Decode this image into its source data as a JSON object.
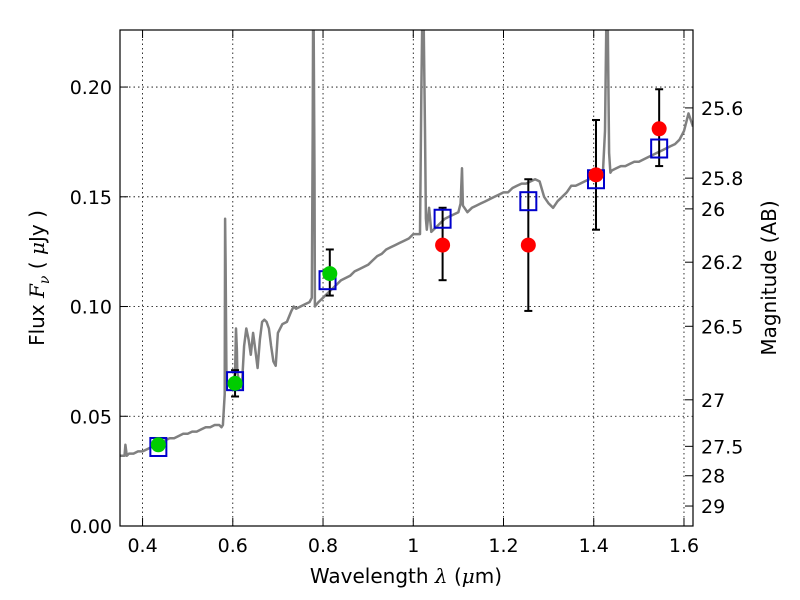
{
  "chart_data": {
    "type": "line",
    "xlabel": "Wavelength",
    "xlabel_symbol": "λ",
    "xlabel_unit_open": " (",
    "xlabel_unit_mu": "μ",
    "xlabel_unit_close": "m)",
    "ylabel": "Flux",
    "ylabel_symbol": "F",
    "ylabel_sub": "ν",
    "ylabel_unit_open": "  ( ",
    "ylabel_unit_mu": "μ",
    "ylabel_unit_close": "Jy )",
    "y2label": "Magnitude (AB)",
    "xlim": [
      0.35,
      1.62
    ],
    "ylim": [
      0.0,
      0.226
    ],
    "grid": true,
    "x_ticks": [
      {
        "value": 0.4,
        "label": "0.4"
      },
      {
        "value": 0.6,
        "label": "0.6"
      },
      {
        "value": 0.8,
        "label": "0.8"
      },
      {
        "value": 1.0,
        "label": "1"
      },
      {
        "value": 1.2,
        "label": "1.2"
      },
      {
        "value": 1.4,
        "label": "1.4"
      },
      {
        "value": 1.6,
        "label": "1.6"
      }
    ],
    "y_ticks": [
      {
        "value": 0.0,
        "label": "0.00"
      },
      {
        "value": 0.05,
        "label": "0.05"
      },
      {
        "value": 0.1,
        "label": "0.10"
      },
      {
        "value": 0.15,
        "label": "0.15"
      },
      {
        "value": 0.2,
        "label": "0.20"
      }
    ],
    "y2_ticks": [
      {
        "flux": 0.1905,
        "label": "25.6"
      },
      {
        "flux": 0.1585,
        "label": "25.8"
      },
      {
        "flux": 0.1445,
        "label": "26"
      },
      {
        "flux": 0.1202,
        "label": "26.2"
      },
      {
        "flux": 0.091,
        "label": "26.5"
      },
      {
        "flux": 0.0575,
        "label": "27"
      },
      {
        "flux": 0.0363,
        "label": "27.5"
      },
      {
        "flux": 0.0229,
        "label": "28"
      },
      {
        "flux": 0.0091,
        "label": "29"
      }
    ],
    "series": [
      {
        "name": "model-spectrum",
        "color": "#808080",
        "points": [
          [
            0.35,
            0.032
          ],
          [
            0.36,
            0.032
          ],
          [
            0.362,
            0.037
          ],
          [
            0.365,
            0.032
          ],
          [
            0.37,
            0.033
          ],
          [
            0.38,
            0.033
          ],
          [
            0.39,
            0.034
          ],
          [
            0.4,
            0.034
          ],
          [
            0.41,
            0.035
          ],
          [
            0.42,
            0.036
          ],
          [
            0.43,
            0.037
          ],
          [
            0.44,
            0.037
          ],
          [
            0.45,
            0.039
          ],
          [
            0.46,
            0.04
          ],
          [
            0.47,
            0.04
          ],
          [
            0.48,
            0.041
          ],
          [
            0.49,
            0.042
          ],
          [
            0.5,
            0.042
          ],
          [
            0.51,
            0.043
          ],
          [
            0.52,
            0.043
          ],
          [
            0.53,
            0.044
          ],
          [
            0.54,
            0.045
          ],
          [
            0.55,
            0.045
          ],
          [
            0.56,
            0.046
          ],
          [
            0.57,
            0.046
          ],
          [
            0.575,
            0.045
          ],
          [
            0.578,
            0.046
          ],
          [
            0.582,
            0.06
          ],
          [
            0.583,
            0.14
          ],
          [
            0.584,
            0.12
          ],
          [
            0.586,
            0.065
          ],
          [
            0.59,
            0.065
          ],
          [
            0.595,
            0.066
          ],
          [
            0.6,
            0.065
          ],
          [
            0.605,
            0.07
          ],
          [
            0.607,
            0.09
          ],
          [
            0.609,
            0.08
          ],
          [
            0.61,
            0.07
          ],
          [
            0.615,
            0.065
          ],
          [
            0.62,
            0.063
          ],
          [
            0.625,
            0.082
          ],
          [
            0.63,
            0.09
          ],
          [
            0.635,
            0.085
          ],
          [
            0.64,
            0.078
          ],
          [
            0.645,
            0.088
          ],
          [
            0.65,
            0.08
          ],
          [
            0.655,
            0.072
          ],
          [
            0.66,
            0.085
          ],
          [
            0.665,
            0.093
          ],
          [
            0.67,
            0.094
          ],
          [
            0.675,
            0.093
          ],
          [
            0.68,
            0.09
          ],
          [
            0.685,
            0.082
          ],
          [
            0.69,
            0.075
          ],
          [
            0.695,
            0.073
          ],
          [
            0.7,
            0.088
          ],
          [
            0.71,
            0.092
          ],
          [
            0.72,
            0.093
          ],
          [
            0.73,
            0.098
          ],
          [
            0.735,
            0.1
          ],
          [
            0.74,
            0.099
          ],
          [
            0.75,
            0.1
          ],
          [
            0.76,
            0.101
          ],
          [
            0.77,
            0.102
          ],
          [
            0.775,
            0.104
          ],
          [
            0.777,
            0.18
          ],
          [
            0.778,
            0.232
          ],
          [
            0.779,
            0.232
          ],
          [
            0.781,
            0.16
          ],
          [
            0.782,
            0.1
          ],
          [
            0.79,
            0.102
          ],
          [
            0.8,
            0.104
          ],
          [
            0.81,
            0.106
          ],
          [
            0.82,
            0.108
          ],
          [
            0.83,
            0.11
          ],
          [
            0.84,
            0.112
          ],
          [
            0.85,
            0.113
          ],
          [
            0.86,
            0.114
          ],
          [
            0.87,
            0.116
          ],
          [
            0.88,
            0.117
          ],
          [
            0.89,
            0.118
          ],
          [
            0.9,
            0.119
          ],
          [
            0.91,
            0.121
          ],
          [
            0.92,
            0.123
          ],
          [
            0.93,
            0.124
          ],
          [
            0.94,
            0.126
          ],
          [
            0.95,
            0.127
          ],
          [
            0.96,
            0.128
          ],
          [
            0.97,
            0.129
          ],
          [
            0.98,
            0.13
          ],
          [
            0.99,
            0.131
          ],
          [
            1.0,
            0.133
          ],
          [
            1.01,
            0.133
          ],
          [
            1.015,
            0.133
          ],
          [
            1.018,
            0.2
          ],
          [
            1.02,
            0.232
          ],
          [
            1.023,
            0.232
          ],
          [
            1.026,
            0.18
          ],
          [
            1.028,
            0.14
          ],
          [
            1.03,
            0.135
          ],
          [
            1.035,
            0.145
          ],
          [
            1.04,
            0.134
          ],
          [
            1.05,
            0.136
          ],
          [
            1.06,
            0.138
          ],
          [
            1.07,
            0.14
          ],
          [
            1.08,
            0.141
          ],
          [
            1.09,
            0.142
          ],
          [
            1.1,
            0.143
          ],
          [
            1.105,
            0.147
          ],
          [
            1.108,
            0.163
          ],
          [
            1.11,
            0.146
          ],
          [
            1.12,
            0.143
          ],
          [
            1.13,
            0.145
          ],
          [
            1.14,
            0.146
          ],
          [
            1.15,
            0.147
          ],
          [
            1.16,
            0.148
          ],
          [
            1.17,
            0.149
          ],
          [
            1.18,
            0.15
          ],
          [
            1.19,
            0.151
          ],
          [
            1.2,
            0.152
          ],
          [
            1.21,
            0.152
          ],
          [
            1.22,
            0.154
          ],
          [
            1.23,
            0.155
          ],
          [
            1.24,
            0.156
          ],
          [
            1.25,
            0.156
          ],
          [
            1.26,
            0.157
          ],
          [
            1.27,
            0.158
          ],
          [
            1.28,
            0.157
          ],
          [
            1.29,
            0.15
          ],
          [
            1.3,
            0.147
          ],
          [
            1.31,
            0.145
          ],
          [
            1.32,
            0.148
          ],
          [
            1.33,
            0.15
          ],
          [
            1.34,
            0.152
          ],
          [
            1.35,
            0.155
          ],
          [
            1.36,
            0.155
          ],
          [
            1.37,
            0.156
          ],
          [
            1.38,
            0.157
          ],
          [
            1.39,
            0.158
          ],
          [
            1.4,
            0.159
          ],
          [
            1.41,
            0.16
          ],
          [
            1.42,
            0.16
          ],
          [
            1.425,
            0.18
          ],
          [
            1.428,
            0.232
          ],
          [
            1.431,
            0.232
          ],
          [
            1.434,
            0.17
          ],
          [
            1.437,
            0.161
          ],
          [
            1.44,
            0.162
          ],
          [
            1.45,
            0.163
          ],
          [
            1.46,
            0.164
          ],
          [
            1.47,
            0.164
          ],
          [
            1.48,
            0.165
          ],
          [
            1.49,
            0.166
          ],
          [
            1.5,
            0.166
          ],
          [
            1.51,
            0.167
          ],
          [
            1.52,
            0.168
          ],
          [
            1.53,
            0.169
          ],
          [
            1.54,
            0.17
          ],
          [
            1.55,
            0.171
          ],
          [
            1.56,
            0.172
          ],
          [
            1.57,
            0.173
          ],
          [
            1.58,
            0.174
          ],
          [
            1.59,
            0.176
          ],
          [
            1.6,
            0.18
          ],
          [
            1.61,
            0.188
          ],
          [
            1.62,
            0.182
          ]
        ]
      },
      {
        "name": "model-photometry",
        "color": "#0000cc",
        "marker": "square",
        "points": [
          [
            0.435,
            0.036
          ],
          [
            0.605,
            0.066
          ],
          [
            0.81,
            0.112
          ],
          [
            1.065,
            0.14
          ],
          [
            1.255,
            0.148
          ],
          [
            1.405,
            0.158
          ],
          [
            1.545,
            0.172
          ]
        ]
      },
      {
        "name": "observed-optical",
        "color": "#00cc00",
        "marker": "circle",
        "points": [
          [
            0.435,
            0.037
          ],
          [
            0.605,
            0.065
          ],
          [
            0.815,
            0.115
          ]
        ]
      },
      {
        "name": "observed-infrared",
        "color": "#ff0000",
        "marker": "circle",
        "points": [
          [
            1.065,
            0.128
          ],
          [
            1.255,
            0.128
          ],
          [
            1.405,
            0.16
          ],
          [
            1.545,
            0.181
          ]
        ]
      },
      {
        "name": "error-bars",
        "color": "#000000",
        "bars": [
          {
            "x": 0.605,
            "y": 0.065,
            "low": 0.059,
            "high": 0.071
          },
          {
            "x": 0.815,
            "y": 0.115,
            "low": 0.105,
            "high": 0.126
          },
          {
            "x": 1.065,
            "y": 0.128,
            "low": 0.112,
            "high": 0.145
          },
          {
            "x": 1.255,
            "y": 0.128,
            "low": 0.098,
            "high": 0.158
          },
          {
            "x": 1.405,
            "y": 0.16,
            "low": 0.135,
            "high": 0.185
          },
          {
            "x": 1.545,
            "y": 0.181,
            "low": 0.164,
            "high": 0.199
          }
        ]
      }
    ]
  }
}
